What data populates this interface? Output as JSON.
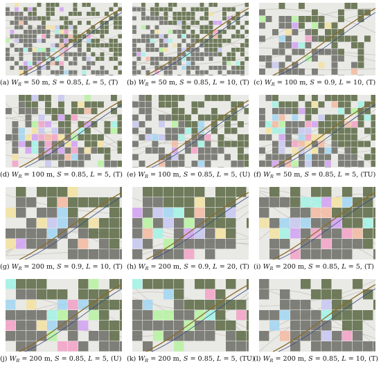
{
  "figure": {
    "panels": [
      {
        "label": "(a)",
        "wr": "50 m",
        "s": "0.85",
        "l": "5",
        "mode": "(T)",
        "density": 0.72,
        "cell": "small",
        "color_strength": 0.35
      },
      {
        "label": "(b)",
        "wr": "50 m",
        "s": "0.85",
        "l": "10",
        "mode": "(T)",
        "density": 0.7,
        "cell": "small",
        "color_strength": 0.3
      },
      {
        "label": "(c)",
        "wr": "100 m",
        "s": "0.9",
        "l": "10",
        "mode": "(T)",
        "density": 0.55,
        "cell": "medium",
        "color_strength": 0.35
      },
      {
        "label": "(d)",
        "wr": "100 m",
        "s": "0.85",
        "l": "5",
        "mode": "(T)",
        "density": 0.8,
        "cell": "medium",
        "color_strength": 0.55
      },
      {
        "label": "(e)",
        "wr": "100 m",
        "s": "0.85",
        "l": "5",
        "mode": "(U)",
        "density": 0.75,
        "cell": "medium",
        "color_strength": 0.35
      },
      {
        "label": "(f)",
        "wr": "50 m",
        "s": "0.85",
        "l": "5",
        "mode": "(TU)",
        "density": 0.8,
        "cell": "medium",
        "color_strength": 0.55
      },
      {
        "label": "(g)",
        "wr": "200 m",
        "s": "0.9",
        "l": "10",
        "mode": "(T)",
        "density": 0.92,
        "cell": "large",
        "color_strength": 0.65
      },
      {
        "label": "(h)",
        "wr": "200 m",
        "s": "0.9",
        "l": "20",
        "mode": "(T)",
        "density": 0.92,
        "cell": "large",
        "color_strength": 0.7
      },
      {
        "label": "(i)",
        "wr": "200 m",
        "s": "0.85",
        "l": "5",
        "mode": "(T)",
        "density": 0.9,
        "cell": "large",
        "color_strength": 0.55
      },
      {
        "label": "(j)",
        "wr": "200 m",
        "s": "0.85",
        "l": "5",
        "mode": "(U)",
        "density": 0.88,
        "cell": "large",
        "color_strength": 0.55
      },
      {
        "label": "(k)",
        "wr": "200 m",
        "s": "0.85",
        "l": "5",
        "mode": "(TU)",
        "density": 0.85,
        "cell": "large",
        "color_strength": 0.6
      },
      {
        "label": "(l)",
        "wr": "200 m",
        "s": "0.85",
        "l": "10",
        "mode": "(T)",
        "density": 0.8,
        "cell": "large",
        "color_strength": 0.3
      }
    ],
    "colors": {
      "cell_gray": "#6f6f6b",
      "cell_green": "#5d6b48",
      "road_brown": "#8a6a2a",
      "road_blue": "#3a4a7a",
      "background": "#e9e9e6",
      "tints": [
        "#f2a3c7",
        "#a3d6f2",
        "#b7f2a3",
        "#f2e1a3",
        "#d1a3f2",
        "#a3f2e6",
        "#f2b9a3",
        "#c7c7f2"
      ]
    }
  }
}
